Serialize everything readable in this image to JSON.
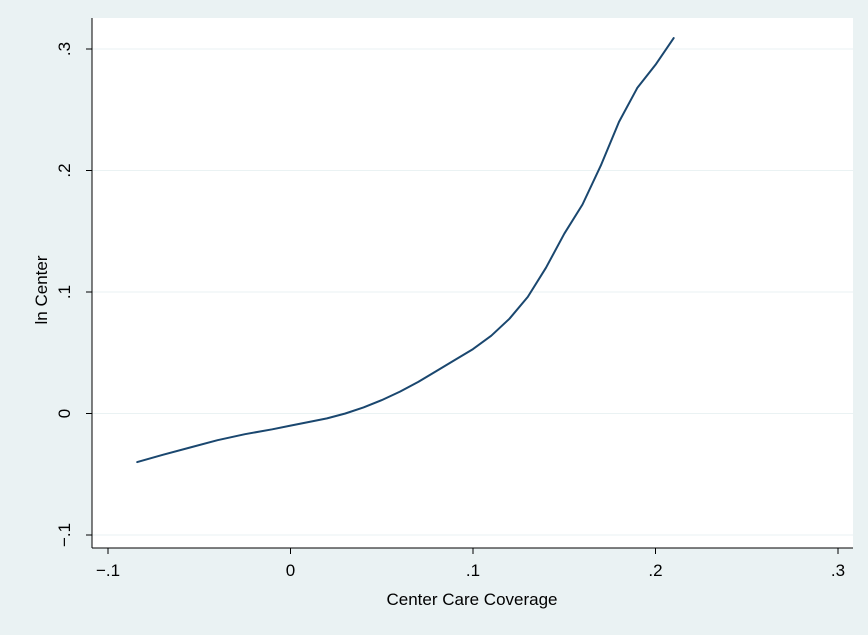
{
  "chart_data": {
    "type": "line",
    "title": "",
    "xlabel": "Center Care Coverage",
    "ylabel": "ln Center",
    "xlim": [
      -0.1,
      0.3
    ],
    "ylim": [
      -0.1,
      0.3
    ],
    "x_ticks": [
      {
        "value": -0.1,
        "label": "−.1"
      },
      {
        "value": 0,
        "label": "0"
      },
      {
        "value": 0.1,
        "label": ".1"
      },
      {
        "value": 0.2,
        "label": ".2"
      },
      {
        "value": 0.3,
        "label": ".3"
      }
    ],
    "y_ticks": [
      {
        "value": -0.1,
        "label": "−.1"
      },
      {
        "value": 0,
        "label": "0"
      },
      {
        "value": 0.1,
        "label": ".1"
      },
      {
        "value": 0.2,
        "label": ".2"
      },
      {
        "value": 0.3,
        "label": ".3"
      }
    ],
    "grid": true,
    "legend": "none",
    "colors": {
      "background": "#eaf2f3",
      "plot_area": "#ffffff",
      "grid": "#eaf2f3",
      "line": "#1a476f"
    },
    "series": [
      {
        "x": [
          -0.084,
          -0.07,
          -0.055,
          -0.04,
          -0.025,
          -0.01,
          0.0,
          0.01,
          0.02,
          0.03,
          0.04,
          0.05,
          0.06,
          0.07,
          0.08,
          0.09,
          0.1,
          0.11,
          0.12,
          0.13,
          0.14,
          0.15,
          0.16,
          0.17,
          0.18,
          0.19,
          0.2,
          0.21
        ],
        "y": [
          -0.04,
          -0.034,
          -0.028,
          -0.022,
          -0.017,
          -0.013,
          -0.01,
          -0.007,
          -0.004,
          0.0,
          0.005,
          0.011,
          0.018,
          0.026,
          0.035,
          0.044,
          0.053,
          0.064,
          0.078,
          0.096,
          0.12,
          0.148,
          0.172,
          0.204,
          0.24,
          0.268,
          0.287,
          0.309
        ]
      }
    ]
  }
}
